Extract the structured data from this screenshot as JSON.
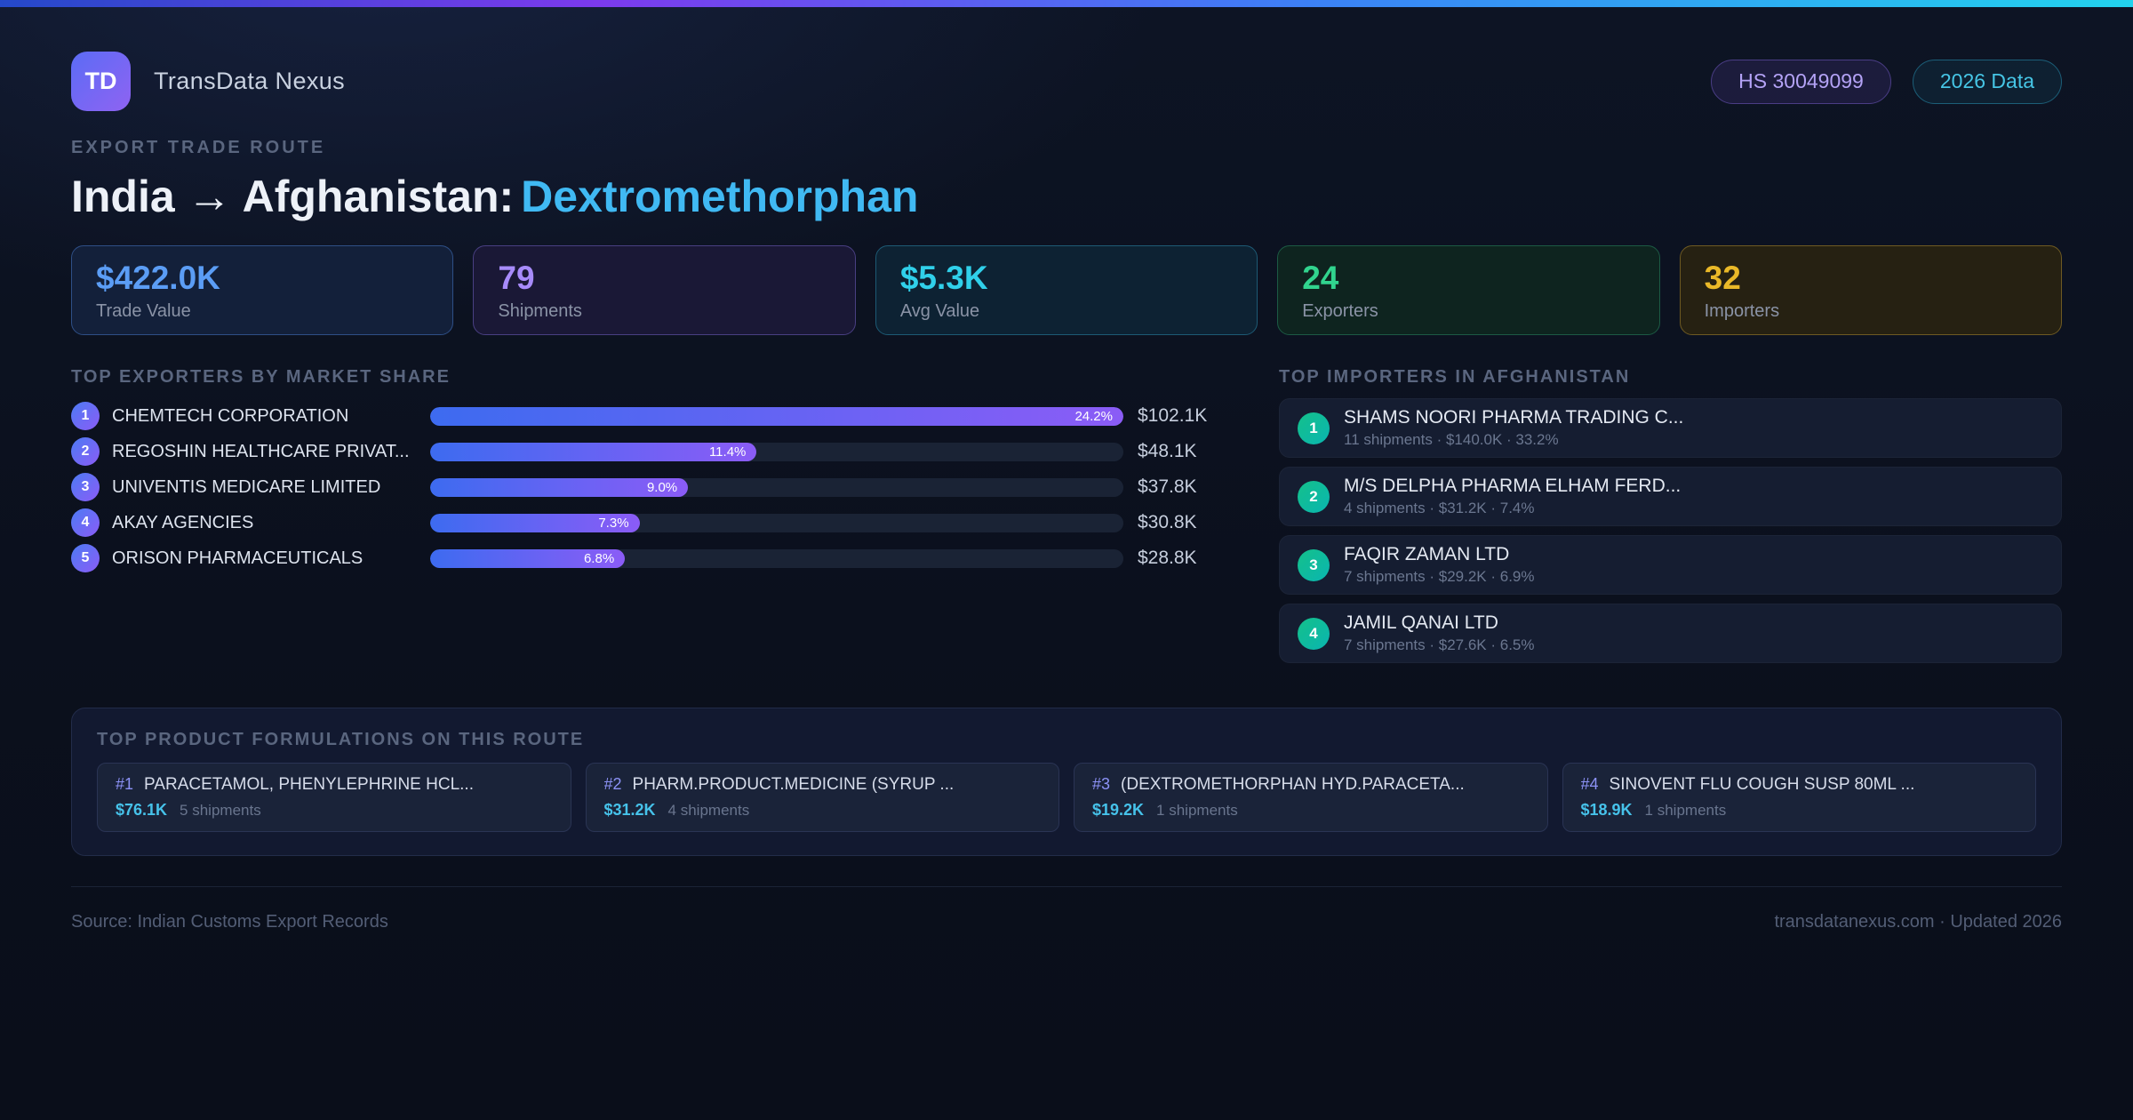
{
  "header": {
    "logo_text": "TD",
    "app_name": "TransData Nexus",
    "hs_badge": "HS 30049099",
    "year_badge": "2026 Data"
  },
  "hero": {
    "eyebrow": "EXPORT TRADE ROUTE",
    "route": "India → Afghanistan:",
    "product": "Dextromethorphan"
  },
  "stats": [
    {
      "value": "$422.0K",
      "label": "Trade Value",
      "value_color": "#5b9df5",
      "border_color": "#2e4f86",
      "bg_color": "#13203a"
    },
    {
      "value": "79",
      "label": "Shipments",
      "value_color": "#a78bfa",
      "border_color": "#493f82",
      "bg_color": "#1a1836"
    },
    {
      "value": "$5.3K",
      "label": "Avg Value",
      "value_color": "#30d0ea",
      "border_color": "#1d5a74",
      "bg_color": "#0d2233"
    },
    {
      "value": "24",
      "label": "Exporters",
      "value_color": "#31d48e",
      "border_color": "#1c5a44",
      "bg_color": "#0e241f"
    },
    {
      "value": "32",
      "label": "Importers",
      "value_color": "#eab928",
      "border_color": "#6e5a22",
      "bg_color": "#262112"
    }
  ],
  "exporters": {
    "title": "TOP EXPORTERS BY MARKET SHARE",
    "max_pct": 24.2,
    "items": [
      {
        "rank": "1",
        "name": "CHEMTECH CORPORATION",
        "share_pct": 24.2,
        "share_label": "24.2%",
        "value": "$102.1K"
      },
      {
        "rank": "2",
        "name": "REGOSHIN HEALTHCARE PRIVAT...",
        "share_pct": 11.4,
        "share_label": "11.4%",
        "value": "$48.1K"
      },
      {
        "rank": "3",
        "name": "UNIVENTIS MEDICARE LIMITED",
        "share_pct": 9.0,
        "share_label": "9.0%",
        "value": "$37.8K"
      },
      {
        "rank": "4",
        "name": "AKAY AGENCIES",
        "share_pct": 7.3,
        "share_label": "7.3%",
        "value": "$30.8K"
      },
      {
        "rank": "5",
        "name": "ORISON PHARMACEUTICALS",
        "share_pct": 6.8,
        "share_label": "6.8%",
        "value": "$28.8K"
      }
    ]
  },
  "importers": {
    "title": "TOP IMPORTERS IN AFGHANISTAN",
    "items": [
      {
        "rank": "1",
        "name": "SHAMS NOORI PHARMA TRADING C...",
        "meta": "11 shipments · $140.0K · 33.2%"
      },
      {
        "rank": "2",
        "name": "M/S DELPHA PHARMA ELHAM FERD...",
        "meta": "4 shipments · $31.2K · 7.4%"
      },
      {
        "rank": "3",
        "name": "FAQIR ZAMAN LTD",
        "meta": "7 shipments · $29.2K · 6.9%"
      },
      {
        "rank": "4",
        "name": "JAMIL QANAI LTD",
        "meta": "7 shipments · $27.6K · 6.5%"
      }
    ]
  },
  "products": {
    "title": "TOP PRODUCT FORMULATIONS ON THIS ROUTE",
    "items": [
      {
        "rank": "#1",
        "name": "PARACETAMOL, PHENYLEPHRINE HCL...",
        "value": "$76.1K",
        "shipments": "5 shipments"
      },
      {
        "rank": "#2",
        "name": "PHARM.PRODUCT.MEDICINE (SYRUP ...",
        "value": "$31.2K",
        "shipments": "4 shipments"
      },
      {
        "rank": "#3",
        "name": "(DEXTROMETHORPHAN HYD.PARACETA...",
        "value": "$19.2K",
        "shipments": "1 shipments"
      },
      {
        "rank": "#4",
        "name": "SINOVENT FLU COUGH SUSP 80ML ...",
        "value": "$18.9K",
        "shipments": "1 shipments"
      }
    ]
  },
  "footer": {
    "source": "Source: Indian Customs Export Records",
    "site": "transdatanexus.com · Updated 2026"
  },
  "chart_data": {
    "type": "bar",
    "title": "TOP EXPORTERS BY MARKET SHARE",
    "categories": [
      "CHEMTECH CORPORATION",
      "REGOSHIN HEALTHCARE PRIVAT...",
      "UNIVENTIS MEDICARE LIMITED",
      "AKAY AGENCIES",
      "ORISON PHARMACEUTICALS"
    ],
    "values": [
      24.2,
      11.4,
      9.0,
      7.3,
      6.8
    ],
    "value_labels": [
      "$102.1K",
      "$48.1K",
      "$37.8K",
      "$30.8K",
      "$28.8K"
    ],
    "xlabel": "",
    "ylabel": "% market share",
    "ylim": [
      0,
      24.2
    ],
    "legend": false,
    "grid": false
  }
}
